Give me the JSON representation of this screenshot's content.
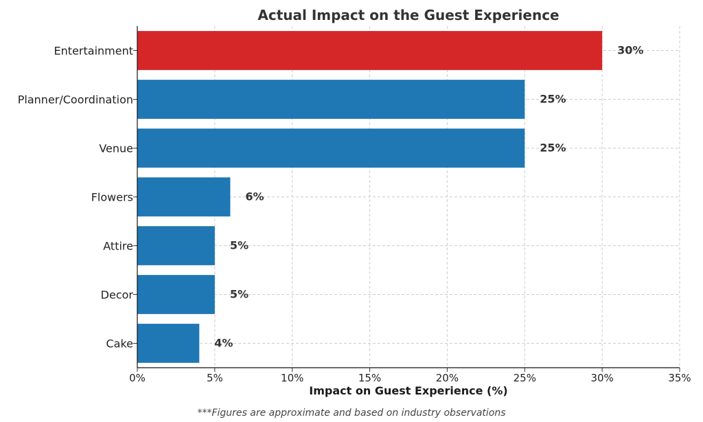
{
  "chart_data": {
    "type": "bar",
    "orientation": "horizontal",
    "title": "Actual Impact on the Guest Experience",
    "xlabel": "Impact on Guest Experience (%)",
    "ylabel": "",
    "categories": [
      "Entertainment",
      "Planner/Coordination",
      "Venue",
      "Flowers",
      "Attire",
      "Decor",
      "Cake"
    ],
    "values": [
      30,
      25,
      25,
      6,
      5,
      5,
      4
    ],
    "value_labels": [
      "30%",
      "25%",
      "25%",
      "6%",
      "5%",
      "5%",
      "4%"
    ],
    "bar_colors": [
      "#d62728",
      "#1f77b4",
      "#1f77b4",
      "#1f77b4",
      "#1f77b4",
      "#1f77b4",
      "#1f77b4"
    ],
    "xlim": [
      0,
      35
    ],
    "xticks": [
      0,
      5,
      10,
      15,
      20,
      25,
      30,
      35
    ],
    "xtick_labels": [
      "0%",
      "5%",
      "10%",
      "15%",
      "20%",
      "25%",
      "30%",
      "35%"
    ],
    "grid": true,
    "footnote": "***Figures are approximate and based on industry observations"
  }
}
